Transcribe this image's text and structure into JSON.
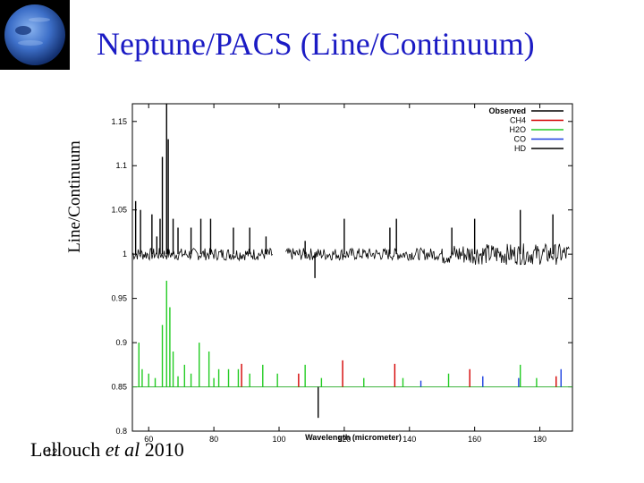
{
  "slide": {
    "title": "Neptune/PACS  (Line/Continuum)",
    "citation_author": "Lellouch ",
    "citation_etal": "et al",
    "citation_year": " 2010",
    "page_number": "12"
  },
  "chart_data": {
    "type": "line",
    "title": "",
    "xlabel": "Wavelength (micrometer)",
    "ylabel": "Line/Continuum",
    "xlim": [
      55,
      190
    ],
    "ylim": [
      0.8,
      1.17
    ],
    "x_ticks": [
      60,
      80,
      100,
      120,
      140,
      160,
      180
    ],
    "y_ticks": [
      0.8,
      0.85,
      0.9,
      0.95,
      1,
      1.05,
      1.1,
      1.15
    ],
    "grid": false,
    "legend_position": "top-right",
    "observed_gap": [
      98,
      102
    ],
    "observed_baseline": 1.0,
    "model_baseline": 0.85,
    "series": [
      {
        "name": "Observed",
        "color": "#000000",
        "lines": [
          {
            "x": 56,
            "y": 1.06
          },
          {
            "x": 57.5,
            "y": 1.05
          },
          {
            "x": 61,
            "y": 1.045
          },
          {
            "x": 62.5,
            "y": 1.02
          },
          {
            "x": 63.5,
            "y": 1.04
          },
          {
            "x": 64.2,
            "y": 1.11
          },
          {
            "x": 65.5,
            "y": 1.17
          },
          {
            "x": 66,
            "y": 1.13
          },
          {
            "x": 67.5,
            "y": 1.04
          },
          {
            "x": 69,
            "y": 1.03
          },
          {
            "x": 73,
            "y": 1.03
          },
          {
            "x": 76,
            "y": 1.04
          },
          {
            "x": 79,
            "y": 1.04
          },
          {
            "x": 86,
            "y": 1.03
          },
          {
            "x": 91,
            "y": 1.03
          },
          {
            "x": 96,
            "y": 1.02
          },
          {
            "x": 108,
            "y": 1.015
          },
          {
            "x": 111,
            "y": 0.973
          },
          {
            "x": 120,
            "y": 1.04
          },
          {
            "x": 134,
            "y": 1.03
          },
          {
            "x": 136,
            "y": 1.04
          },
          {
            "x": 153,
            "y": 1.03
          },
          {
            "x": 160,
            "y": 1.04
          },
          {
            "x": 174,
            "y": 1.05
          },
          {
            "x": 184,
            "y": 1.045
          }
        ]
      },
      {
        "name": "CH4",
        "color": "#d40000",
        "lines": [
          {
            "x": 88.5,
            "y": 0.876
          },
          {
            "x": 106,
            "y": 0.865
          },
          {
            "x": 119.5,
            "y": 0.88
          },
          {
            "x": 135.5,
            "y": 0.876
          },
          {
            "x": 158.5,
            "y": 0.87
          },
          {
            "x": 185,
            "y": 0.862
          }
        ]
      },
      {
        "name": "H2O",
        "color": "#22cc22",
        "lines": [
          {
            "x": 57,
            "y": 0.9
          },
          {
            "x": 58,
            "y": 0.87
          },
          {
            "x": 60,
            "y": 0.865
          },
          {
            "x": 62,
            "y": 0.86
          },
          {
            "x": 64.2,
            "y": 0.92
          },
          {
            "x": 65.5,
            "y": 0.97
          },
          {
            "x": 66.5,
            "y": 0.94
          },
          {
            "x": 67.5,
            "y": 0.89
          },
          {
            "x": 69,
            "y": 0.862
          },
          {
            "x": 71,
            "y": 0.875
          },
          {
            "x": 73,
            "y": 0.865
          },
          {
            "x": 75.5,
            "y": 0.9
          },
          {
            "x": 78.5,
            "y": 0.89
          },
          {
            "x": 80,
            "y": 0.86
          },
          {
            "x": 81.5,
            "y": 0.87
          },
          {
            "x": 84.5,
            "y": 0.87
          },
          {
            "x": 87.5,
            "y": 0.87
          },
          {
            "x": 91,
            "y": 0.865
          },
          {
            "x": 95,
            "y": 0.875
          },
          {
            "x": 99.5,
            "y": 0.865
          },
          {
            "x": 108,
            "y": 0.875
          },
          {
            "x": 113,
            "y": 0.86
          },
          {
            "x": 126,
            "y": 0.86
          },
          {
            "x": 138,
            "y": 0.86
          },
          {
            "x": 152,
            "y": 0.865
          },
          {
            "x": 174,
            "y": 0.875
          },
          {
            "x": 179,
            "y": 0.86
          }
        ]
      },
      {
        "name": "CO",
        "color": "#1a3fe0",
        "lines": [
          {
            "x": 143.5,
            "y": 0.857
          },
          {
            "x": 162.5,
            "y": 0.862
          },
          {
            "x": 173.5,
            "y": 0.86
          },
          {
            "x": 186.5,
            "y": 0.87
          }
        ]
      },
      {
        "name": "HD",
        "color": "#000000",
        "lines": [
          {
            "x": 112,
            "y": 0.815
          }
        ]
      }
    ]
  }
}
